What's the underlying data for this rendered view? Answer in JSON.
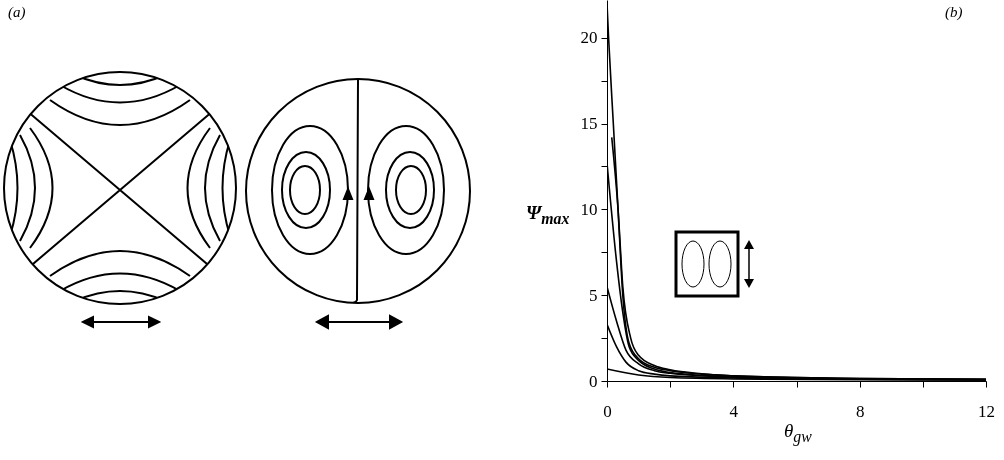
{
  "chart_data": {
    "type": "line",
    "xlabel": "θ$_{gw}$",
    "ylabel": "Ψ$_{max}$",
    "annotations": [
      "(a)",
      "(b)"
    ],
    "xlim": [
      0,
      12
    ],
    "ylim": [
      0,
      22.2
    ],
    "xticks": [
      0,
      {
        "value": 2,
        "label": null
      },
      4,
      {
        "value": 6,
        "label": null
      },
      8,
      {
        "value": 10,
        "label": null
      },
      12
    ],
    "yticks": [
      0,
      {
        "value": 2.5,
        "label": null
      },
      5,
      {
        "value": 7.5,
        "label": null
      },
      10,
      {
        "value": 12.5,
        "label": null
      },
      15,
      {
        "value": 17.5,
        "label": null
      },
      20
    ],
    "series": [
      {
        "color": "#000000",
        "x": [
          0,
          0.05,
          0.2,
          0.35,
          0.5,
          0.7,
          1,
          1.5,
          2,
          3,
          4,
          6,
          8,
          12
        ],
        "values": [
          22,
          20,
          15,
          10,
          5,
          2.2,
          1.3,
          0.8,
          0.6,
          0.4,
          0.3,
          0.2,
          0.15,
          0.1
        ]
      },
      {
        "color": "#000000",
        "x": [
          0.15,
          0.35,
          0.5,
          0.75,
          1,
          1.5,
          2,
          3,
          4,
          6,
          8,
          12
        ],
        "values": [
          14.2,
          10,
          5.5,
          2.5,
          1.5,
          0.9,
          0.65,
          0.42,
          0.3,
          0.2,
          0.15,
          0.1
        ]
      },
      {
        "color": "#000000",
        "x": [
          0,
          0.3,
          0.5,
          0.7,
          1,
          1.5,
          2,
          4,
          8,
          12
        ],
        "values": [
          12.7,
          7,
          4,
          2,
          1.2,
          0.7,
          0.5,
          0.25,
          0.12,
          0.08
        ]
      },
      {
        "color": "#000000",
        "x": [
          0,
          0.3,
          0.6,
          1,
          1.5,
          2,
          4,
          8,
          12
        ],
        "values": [
          5.5,
          3.5,
          1.8,
          1,
          0.6,
          0.45,
          0.22,
          0.11,
          0.07
        ]
      },
      {
        "color": "#000000",
        "x": [
          0,
          0.3,
          0.6,
          1,
          1.5,
          2,
          4,
          8,
          12
        ],
        "values": [
          3.3,
          2,
          1.1,
          0.6,
          0.4,
          0.3,
          0.18,
          0.1,
          0.06
        ]
      },
      {
        "color": "#000000",
        "x": [
          0,
          1,
          2,
          4,
          8,
          12
        ],
        "values": [
          0.7,
          0.35,
          0.2,
          0.12,
          0.08,
          0.06
        ]
      }
    ]
  }
}
